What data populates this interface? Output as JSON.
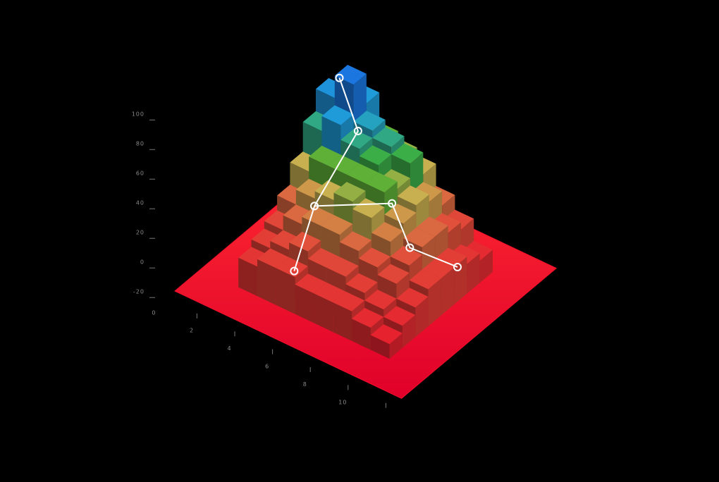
{
  "chart_data": {
    "type": "bar3d",
    "xlim": [
      0,
      12
    ],
    "ylim": [
      0,
      12
    ],
    "zlim": [
      -20,
      100
    ],
    "xticks": [
      0,
      2,
      4,
      6,
      8,
      10
    ],
    "zticks": [
      -20,
      0,
      20,
      40,
      60,
      80,
      100
    ],
    "x": [
      2,
      3,
      4,
      5,
      6,
      7,
      8,
      9
    ],
    "y": [
      2,
      3,
      4,
      5,
      6,
      7,
      8,
      9
    ],
    "values": [
      [
        0,
        5,
        10,
        20,
        35,
        55,
        70,
        60
      ],
      [
        5,
        10,
        20,
        30,
        45,
        65,
        85,
        65
      ],
      [
        5,
        15,
        25,
        35,
        45,
        55,
        60,
        45
      ],
      [
        0,
        10,
        25,
        40,
        45,
        50,
        55,
        40
      ],
      [
        0,
        10,
        20,
        35,
        45,
        40,
        50,
        35
      ],
      [
        0,
        5,
        15,
        25,
        30,
        35,
        30,
        20
      ],
      [
        -5,
        0,
        10,
        15,
        20,
        20,
        15,
        10
      ],
      [
        -10,
        -5,
        0,
        5,
        5,
        5,
        0,
        -5
      ]
    ],
    "floor_color": "#f0102a",
    "colorscale": [
      [
        -20,
        "#e8102a"
      ],
      [
        15,
        "#e0503a"
      ],
      [
        35,
        "#c8b050"
      ],
      [
        48,
        "#40b030"
      ],
      [
        62,
        "#20a0d8"
      ],
      [
        90,
        "#1a6ee0"
      ]
    ],
    "series": [
      {
        "color": "#ffffff",
        "x": [
          5.5,
          5,
          5.6,
          3.25
        ],
        "y": [
          1.2,
          3.5,
          6,
          8
        ],
        "z": [
          18,
          42,
          78,
          85
        ]
      },
      {
        "color": "#ffffff",
        "x": [
          5,
          7.4,
          8,
          9.5
        ],
        "y": [
          3.5,
          6,
          6.5,
          8
        ],
        "z": [
          42,
          40,
          10,
          -5
        ]
      }
    ]
  }
}
